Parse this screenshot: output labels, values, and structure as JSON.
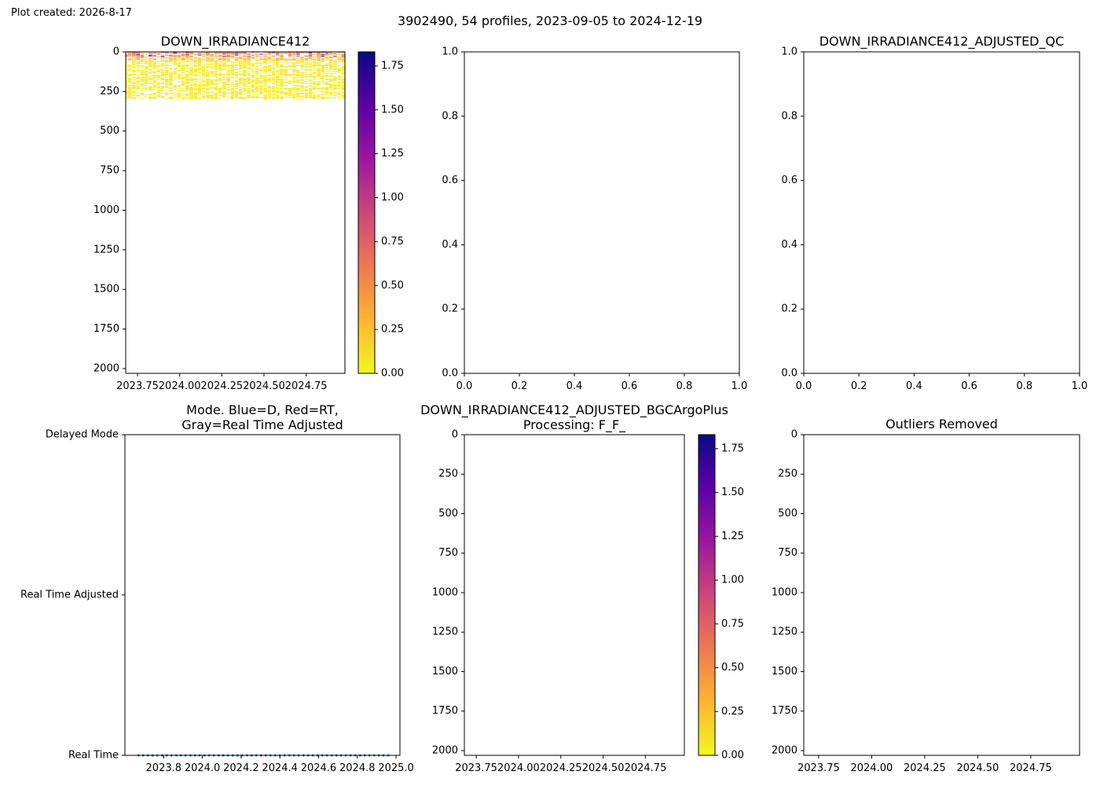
{
  "figure": {
    "created_label": "Plot created: 2026-8-17",
    "suptitle": "3902490, 54 profiles, 2023-09-05 to 2024-12-19"
  },
  "colormap": {
    "name": "plasma_r",
    "stops": [
      "#f0f921",
      "#fdb42f",
      "#ed7953",
      "#cc4778",
      "#9c179e",
      "#5c01a6",
      "#0d0887"
    ]
  },
  "chart_data": [
    {
      "id": "irradiance-raw",
      "type": "heatmap",
      "title": "DOWN_IRRADIANCE412",
      "xlim": [
        2023.68,
        2024.98
      ],
      "ylim": [
        2030,
        0
      ],
      "x_ticks": [
        2023.75,
        2024.0,
        2024.25,
        2024.5,
        2024.75
      ],
      "x_tick_labels": [
        "2023.75",
        "2024.00",
        "2024.25",
        "2024.50",
        "2024.75"
      ],
      "y_ticks": [
        0,
        250,
        500,
        750,
        1000,
        1250,
        1500,
        1750,
        2000
      ],
      "y_tick_labels": [
        "0",
        "250",
        "500",
        "750",
        "1000",
        "1250",
        "1500",
        "1750",
        "2000"
      ],
      "data_depth_range": [
        0,
        300
      ],
      "profile_count": 54,
      "time_range": [
        2023.68,
        2024.97
      ],
      "colorbar": {
        "range": [
          0,
          1.83
        ],
        "ticks": [
          0,
          0.25,
          0.5,
          0.75,
          1.0,
          1.25,
          1.5,
          1.75
        ],
        "tick_labels": [
          "0.00",
          "0.25",
          "0.50",
          "0.75",
          "1.00",
          "1.25",
          "1.50",
          "1.75"
        ]
      }
    },
    {
      "id": "empty-middle-top",
      "type": "scatter",
      "title": "",
      "xlim": [
        0,
        1
      ],
      "ylim": [
        0,
        1
      ],
      "x_ticks": [
        0,
        0.2,
        0.4,
        0.6,
        0.8,
        1.0
      ],
      "x_tick_labels": [
        "0.0",
        "0.2",
        "0.4",
        "0.6",
        "0.8",
        "1.0"
      ],
      "y_ticks": [
        0,
        0.2,
        0.4,
        0.6,
        0.8,
        1.0
      ],
      "y_tick_labels": [
        "0.0",
        "0.2",
        "0.4",
        "0.6",
        "0.8",
        "1.0"
      ],
      "series": []
    },
    {
      "id": "adjusted-qc",
      "type": "scatter",
      "title": "DOWN_IRRADIANCE412_ADJUSTED_QC",
      "xlim": [
        0,
        1
      ],
      "ylim": [
        0,
        1
      ],
      "x_ticks": [
        0,
        0.2,
        0.4,
        0.6,
        0.8,
        1.0
      ],
      "x_tick_labels": [
        "0.0",
        "0.2",
        "0.4",
        "0.6",
        "0.8",
        "1.0"
      ],
      "y_ticks": [
        0,
        0.2,
        0.4,
        0.6,
        0.8,
        1.0
      ],
      "y_tick_labels": [
        "0.0",
        "0.2",
        "0.4",
        "0.6",
        "0.8",
        "1.0"
      ],
      "series": []
    },
    {
      "id": "mode",
      "type": "scatter",
      "title_lines": [
        "Mode. Blue=D, Red=RT,",
        "Gray=Real Time Adjusted"
      ],
      "xlim": [
        2023.6,
        2025.02
      ],
      "ylim": [
        0,
        2
      ],
      "x_ticks": [
        2023.8,
        2024.0,
        2024.2,
        2024.4,
        2024.6,
        2024.8,
        2025.0
      ],
      "x_tick_labels": [
        "2023.8",
        "2024.0",
        "2024.2",
        "2024.4",
        "2024.6",
        "2024.8",
        "2025.0"
      ],
      "y_ticks": [
        0,
        1,
        2
      ],
      "y_tick_labels": [
        "Real Time",
        "Real Time Adjusted",
        "Delayed Mode"
      ],
      "point_color": "#1f77b4",
      "x": [
        2023.67,
        2023.694,
        2023.719,
        2023.743,
        2023.767,
        2023.792,
        2023.816,
        2023.84,
        2023.865,
        2023.889,
        2023.913,
        2023.938,
        2023.962,
        2023.986,
        2024.011,
        2024.035,
        2024.059,
        2024.084,
        2024.108,
        2024.132,
        2024.157,
        2024.181,
        2024.205,
        2024.23,
        2024.254,
        2024.278,
        2024.303,
        2024.327,
        2024.351,
        2024.376,
        2024.4,
        2024.424,
        2024.449,
        2024.473,
        2024.497,
        2024.522,
        2024.546,
        2024.57,
        2024.595,
        2024.619,
        2024.643,
        2024.668,
        2024.692,
        2024.716,
        2024.741,
        2024.765,
        2024.789,
        2024.814,
        2024.838,
        2024.862,
        2024.887,
        2024.911,
        2024.935,
        2024.96
      ],
      "y_value": 0
    },
    {
      "id": "irradiance-adjusted",
      "type": "heatmap",
      "title_lines": [
        "DOWN_IRRADIANCE412_ADJUSTED_BGCArgoPlus",
        "Processing: F_F_"
      ],
      "xlim": [
        2023.68,
        2024.98
      ],
      "ylim": [
        2030,
        0
      ],
      "x_ticks": [
        2023.75,
        2024.0,
        2024.25,
        2024.5,
        2024.75
      ],
      "x_tick_labels": [
        "2023.75",
        "2024.00",
        "2024.25",
        "2024.50",
        "2024.75"
      ],
      "y_ticks": [
        0,
        250,
        500,
        750,
        1000,
        1250,
        1500,
        1750,
        2000
      ],
      "y_tick_labels": [
        "0",
        "250",
        "500",
        "750",
        "1000",
        "1250",
        "1500",
        "1750",
        "2000"
      ],
      "colorbar": {
        "range": [
          0,
          1.83
        ],
        "ticks": [
          0,
          0.25,
          0.5,
          0.75,
          1.0,
          1.25,
          1.5,
          1.75
        ],
        "tick_labels": [
          "0.00",
          "0.25",
          "0.50",
          "0.75",
          "1.00",
          "1.25",
          "1.50",
          "1.75"
        ]
      }
    },
    {
      "id": "outliers",
      "type": "scatter",
      "title": "Outliers Removed",
      "xlim": [
        2023.68,
        2024.98
      ],
      "ylim": [
        2030,
        0
      ],
      "x_ticks": [
        2023.75,
        2024.0,
        2024.25,
        2024.5,
        2024.75
      ],
      "x_tick_labels": [
        "2023.75",
        "2024.00",
        "2024.25",
        "2024.50",
        "2024.75"
      ],
      "y_ticks": [
        0,
        250,
        500,
        750,
        1000,
        1250,
        1500,
        1750,
        2000
      ],
      "y_tick_labels": [
        "0",
        "250",
        "500",
        "750",
        "1000",
        "1250",
        "1500",
        "1750",
        "2000"
      ],
      "series": []
    }
  ]
}
